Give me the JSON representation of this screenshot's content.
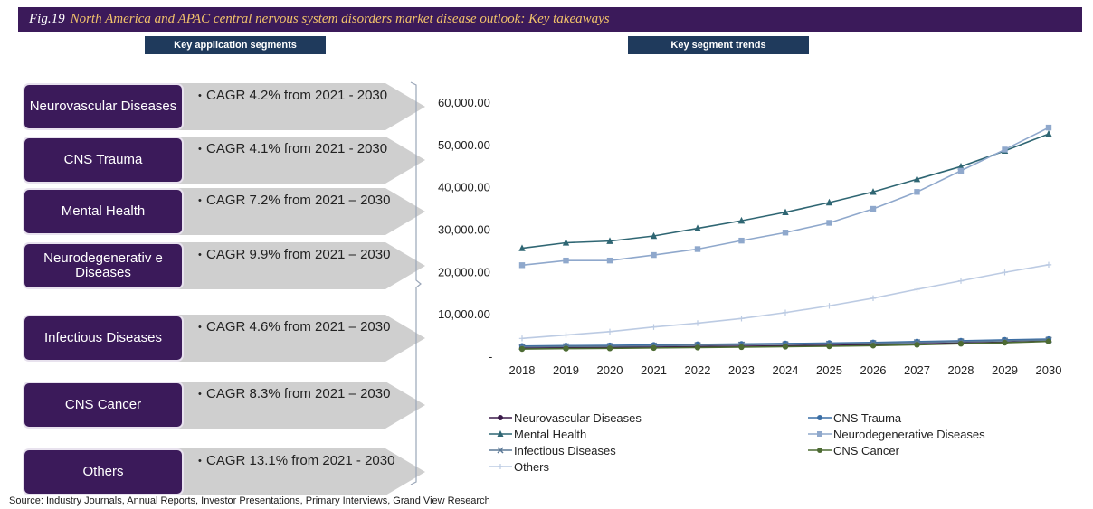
{
  "figure": {
    "number": "Fig.19",
    "title": "North America and APAC central nervous system disorders market disease outlook: Key takeaways"
  },
  "headers": {
    "left": "Key  application segments",
    "right": "Key segment trends"
  },
  "segments": [
    {
      "name": "Neurovascular Diseases",
      "cagr": "CAGR 4.2% from 2021 - 2030"
    },
    {
      "name": "CNS Trauma",
      "cagr": "CAGR 4.1% from 2021 - 2030"
    },
    {
      "name": "Mental Health",
      "cagr": "CAGR 7.2% from 2021 – 2030"
    },
    {
      "name": "Neurodegenerativ e Diseases",
      "cagr": "CAGR 9.9% from 2021 – 2030"
    },
    {
      "name": "Infectious Diseases",
      "cagr": "CAGR 4.6% from 2021 – 2030"
    },
    {
      "name": "CNS Cancer",
      "cagr": "CAGR 8.3% from 2021 – 2030"
    },
    {
      "name": "Others",
      "cagr": "CAGR 13.1% from 2021 - 2030"
    }
  ],
  "source": "Source: Industry Journals, Annual Reports, Investor Presentations, Primary Interviews, Grand View Research",
  "chart_data": {
    "type": "line",
    "x": [
      "2018",
      "2019",
      "2020",
      "2021",
      "2022",
      "2023",
      "2024",
      "2025",
      "2026",
      "2027",
      "2028",
      "2029",
      "2030"
    ],
    "yticks": [
      "-",
      "10,000.00",
      "20,000.00",
      "30,000.00",
      "40,000.00",
      "50,000.00",
      "60,000.00"
    ],
    "ylim": [
      0,
      60000
    ],
    "legend_position": "bottom",
    "series": [
      {
        "name": "Neurovascular Diseases",
        "color": "#3b1a4a",
        "marker": "circle",
        "values": [
          1900,
          2000,
          2050,
          2150,
          2250,
          2350,
          2450,
          2550,
          2700,
          2900,
          3100,
          3300,
          3550
        ]
      },
      {
        "name": "CNS Trauma",
        "color": "#3a6ea5",
        "marker": "circle",
        "values": [
          2400,
          2500,
          2550,
          2650,
          2800,
          2900,
          3000,
          3100,
          3250,
          3450,
          3650,
          3850,
          4050
        ]
      },
      {
        "name": "Mental Health",
        "color": "#2f6673",
        "marker": "triangle",
        "values": [
          25500,
          26800,
          27200,
          28400,
          30200,
          32000,
          34000,
          36300,
          38800,
          41800,
          44800,
          48500,
          52500
        ]
      },
      {
        "name": "Neurodegenerative Diseases",
        "color": "#8fa8cc",
        "marker": "square",
        "values": [
          21500,
          22600,
          22600,
          23900,
          25300,
          27300,
          29200,
          31500,
          34800,
          38800,
          43800,
          48800,
          54000
        ]
      },
      {
        "name": "Infectious Diseases",
        "color": "#5b7896",
        "marker": "x",
        "values": [
          2200,
          2300,
          2350,
          2450,
          2600,
          2700,
          2800,
          2900,
          3050,
          3250,
          3450,
          3650,
          3850
        ]
      },
      {
        "name": "CNS Cancer",
        "color": "#4d6b33",
        "marker": "circle",
        "values": [
          1700,
          1800,
          1850,
          1950,
          2050,
          2150,
          2250,
          2350,
          2500,
          2700,
          2950,
          3200,
          3500
        ]
      },
      {
        "name": "Others",
        "color": "#bccbe3",
        "marker": "plus",
        "values": [
          4200,
          5000,
          5800,
          6900,
          7800,
          8900,
          10300,
          11900,
          13700,
          15800,
          17800,
          19800,
          21600
        ]
      }
    ]
  }
}
